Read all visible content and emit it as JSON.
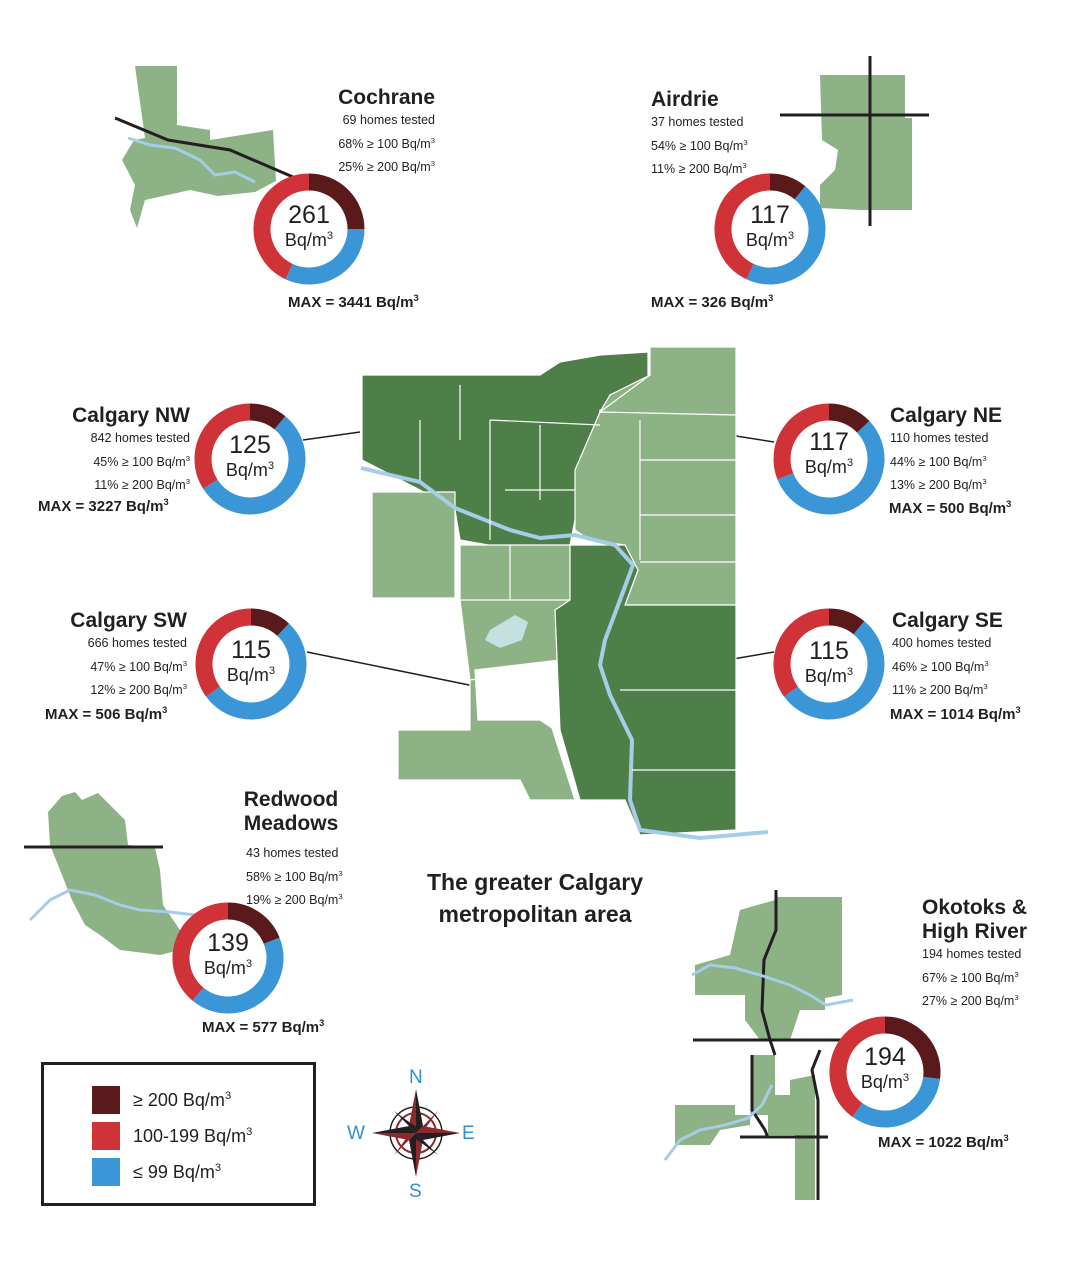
{
  "title": "The greater Calgary metropolitan area",
  "unit": "Bq/m",
  "unit_sup": "3",
  "colors": {
    "high": "#5a1a1c",
    "mid": "#cf3237",
    "low": "#3a96d6",
    "map_dark": "#4f7f49",
    "map_light": "#8db285",
    "river": "#a6cde8"
  },
  "regions": [
    {
      "id": "cochrane",
      "name": "Cochrane",
      "homes": "69 homes tested",
      "pct100": "68% ≥ 100 Bq/m",
      "pct200": "25% ≥ 200 Bq/m",
      "value": "261",
      "max": "MAX = 3441 Bq/m",
      "share_high": 25,
      "share_mid": 43,
      "share_low": 32
    },
    {
      "id": "airdrie",
      "name": "Airdrie",
      "homes": "37 homes tested",
      "pct100": "54% ≥ 100 Bq/m",
      "pct200": "11% ≥ 200 Bq/m",
      "value": "117",
      "max": "MAX = 326 Bq/m",
      "share_high": 11,
      "share_mid": 43,
      "share_low": 46
    },
    {
      "id": "calgary_nw",
      "name": "Calgary NW",
      "homes": "842 homes tested",
      "pct100": "45% ≥ 100 Bq/m",
      "pct200": "11% ≥ 200 Bq/m",
      "value": "125",
      "max": "MAX = 3227 Bq/m",
      "share_high": 11,
      "share_mid": 34,
      "share_low": 55
    },
    {
      "id": "calgary_ne",
      "name": "Calgary NE",
      "homes": "110 homes tested",
      "pct100": "44% ≥ 100 Bq/m",
      "pct200": "13% ≥ 200 Bq/m",
      "value": "117",
      "max": "MAX = 500 Bq/m",
      "share_high": 13,
      "share_mid": 31,
      "share_low": 56
    },
    {
      "id": "calgary_sw",
      "name": "Calgary SW",
      "homes": "666 homes tested",
      "pct100": "47% ≥ 100 Bq/m",
      "pct200": "12% ≥ 200 Bq/m",
      "value": "115",
      "max": "MAX = 506 Bq/m",
      "share_high": 12,
      "share_mid": 35,
      "share_low": 53
    },
    {
      "id": "calgary_se",
      "name": "Calgary SE",
      "homes": "400 homes tested",
      "pct100": "46% ≥ 100 Bq/m",
      "pct200": "11% ≥ 200 Bq/m",
      "value": "115",
      "max": "MAX = 1014 Bq/m",
      "share_high": 11,
      "share_mid": 35,
      "share_low": 54
    },
    {
      "id": "redwood",
      "name_line1": "Redwood",
      "name_line2": "Meadows",
      "homes": "43 homes tested",
      "pct100": "58% ≥ 100 Bq/m",
      "pct200": "19% ≥ 200 Bq/m",
      "value": "139",
      "max": "MAX = 577 Bq/m",
      "share_high": 19,
      "share_mid": 39,
      "share_low": 42
    },
    {
      "id": "okotoks",
      "name_line1": "Okotoks &",
      "name_line2": "High River",
      "homes": "194 homes tested",
      "pct100": "67% ≥ 100 Bq/m",
      "pct200": "27% ≥ 200 Bq/m",
      "value": "194",
      "max": "MAX = 1022 Bq/m",
      "share_high": 27,
      "share_mid": 40,
      "share_low": 33
    }
  ],
  "legend": [
    {
      "label": "≥ 200 Bq/m",
      "color": "#5a1a1c"
    },
    {
      "label": "100-199 Bq/m",
      "color": "#cf3237"
    },
    {
      "label": "≤ 99 Bq/m",
      "color": "#3a96d6"
    }
  ],
  "compass": {
    "n": "N",
    "s": "S",
    "e": "E",
    "w": "W"
  }
}
